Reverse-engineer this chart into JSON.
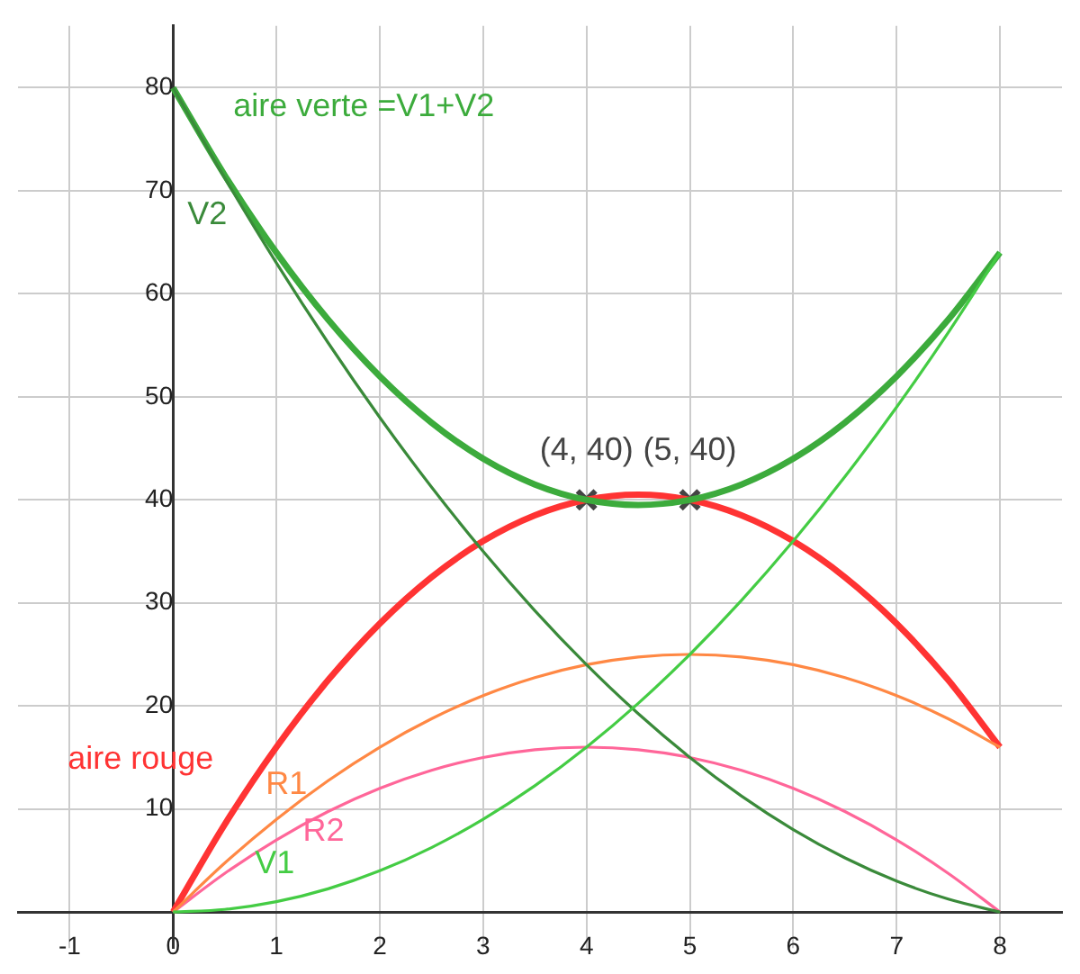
{
  "chart_data": {
    "type": "line",
    "x": [
      0,
      0.5,
      1,
      1.5,
      2,
      2.5,
      3,
      3.5,
      4,
      4.5,
      5,
      5.5,
      6,
      6.5,
      7,
      7.5,
      8
    ],
    "series": [
      {
        "name": "V1",
        "color": "#44cc44",
        "values": [
          0,
          0.25,
          1,
          2.25,
          4,
          6.25,
          9,
          12.25,
          16,
          20.25,
          25,
          30.25,
          36,
          42.25,
          49,
          56.25,
          64
        ]
      },
      {
        "name": "V2",
        "color": "#3a8a3a",
        "values": [
          80,
          71.25,
          63,
          55.25,
          48,
          41.25,
          35,
          29.25,
          24,
          19.25,
          15,
          11.25,
          8,
          5.25,
          3,
          1.25,
          0
        ]
      },
      {
        "name": "aire verte =V1+V2",
        "color": "#3cab3c",
        "values": [
          80,
          71.5,
          64,
          57.5,
          52,
          47.5,
          44,
          41.5,
          40,
          39.5,
          40,
          41.5,
          44,
          47.5,
          52,
          57.5,
          64
        ]
      },
      {
        "name": "R1",
        "color": "#ff8844",
        "values": [
          0,
          4.75,
          9,
          12.75,
          16,
          18.75,
          21,
          22.75,
          24,
          24.75,
          25,
          24.75,
          24,
          22.75,
          21,
          18.75,
          16
        ]
      },
      {
        "name": "R2",
        "color": "#ff6699",
        "values": [
          0,
          3.75,
          7,
          9.75,
          12,
          13.75,
          15,
          15.75,
          16,
          15.75,
          15,
          13.75,
          12,
          9.75,
          7,
          3.75,
          0
        ]
      },
      {
        "name": "aire rouge",
        "color": "#ff3333",
        "values": [
          0,
          8.5,
          16,
          22.5,
          28,
          32.5,
          36,
          38.5,
          40,
          40.5,
          40,
          38.5,
          36,
          32.5,
          28,
          22.5,
          16
        ]
      },
      {
        "type": "scatter",
        "marker": "cross",
        "color": "#444444",
        "x": [
          4,
          5
        ],
        "values": [
          40,
          40
        ]
      }
    ],
    "annotations": [
      {
        "text": "(4, 40)",
        "x": 4,
        "y": 40
      },
      {
        "text": "(5, 40)",
        "x": 5,
        "y": 40
      }
    ],
    "xlim": [
      -1.5,
      8.6
    ],
    "xticks": [
      -1,
      0,
      1,
      2,
      3,
      4,
      5,
      6,
      7,
      8
    ],
    "ylim": [
      -3.5,
      86
    ],
    "yticks": [
      {
        "value": 0,
        "label": null
      },
      10,
      20,
      30,
      40,
      50,
      60,
      70,
      80
    ],
    "grid": true,
    "legend": false,
    "marker": "none"
  }
}
